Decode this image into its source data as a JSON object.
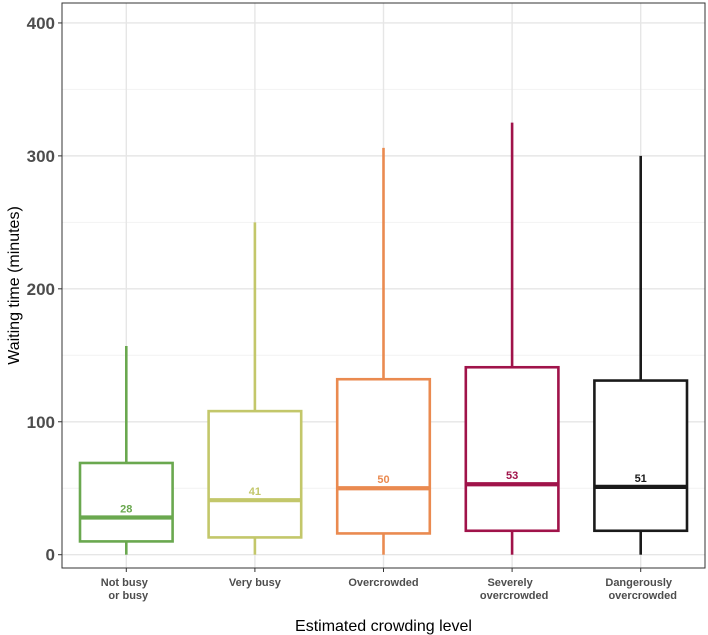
{
  "chart_data": {
    "type": "boxplot",
    "title": "",
    "xlabel": "Estimated crowding level",
    "ylabel": "Waiting time (minutes)",
    "ylim": [
      -10,
      415
    ],
    "yticks": [
      0,
      100,
      200,
      300,
      400
    ],
    "grid": true,
    "categories": [
      [
        "Not busy",
        "or busy"
      ],
      [
        "Very busy"
      ],
      [
        "Overcrowded"
      ],
      [
        "Severely",
        "overcrowded"
      ],
      [
        "Dangerously",
        "overcrowded"
      ]
    ],
    "boxes": [
      {
        "name": "Not busy or busy",
        "whisker_low": 0,
        "q1": 10,
        "median": 28,
        "q3": 69,
        "whisker_high": 157,
        "median_label": "28",
        "color": "#6aa84f"
      },
      {
        "name": "Very busy",
        "whisker_low": 0,
        "q1": 13,
        "median": 41,
        "q3": 108,
        "whisker_high": 250,
        "median_label": "41",
        "color": "#c3c76a"
      },
      {
        "name": "Overcrowded",
        "whisker_low": 0,
        "q1": 16,
        "median": 50,
        "q3": 132,
        "whisker_high": 306,
        "median_label": "50",
        "color": "#ea8a50"
      },
      {
        "name": "Severely overcrowded",
        "whisker_low": 0,
        "q1": 18,
        "median": 53,
        "q3": 141,
        "whisker_high": 325,
        "median_label": "53",
        "color": "#a0134a"
      },
      {
        "name": "Dangerously overcrowded",
        "whisker_low": 0,
        "q1": 18,
        "median": 51,
        "q3": 131,
        "whisker_high": 300,
        "median_label": "51",
        "color": "#1a1a1a"
      }
    ]
  }
}
